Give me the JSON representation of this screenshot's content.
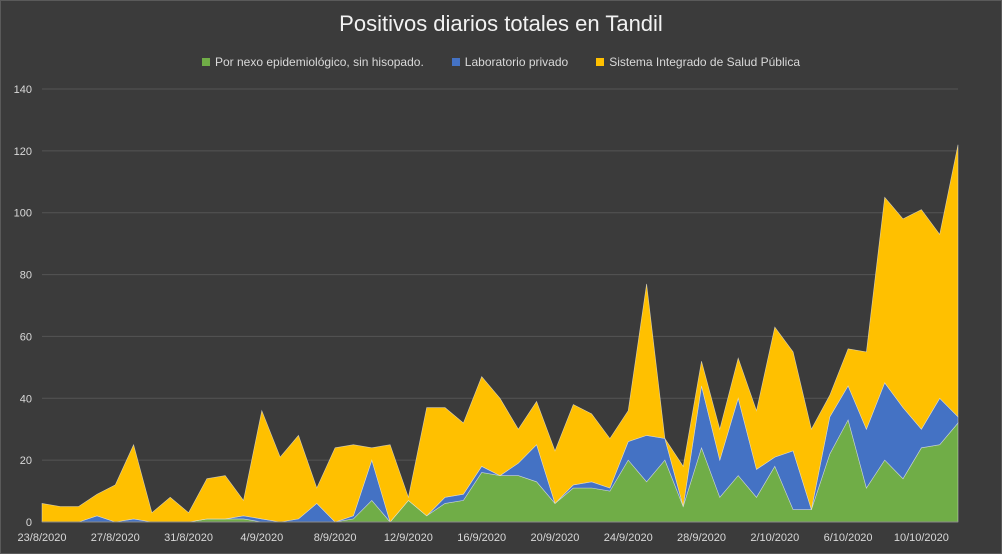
{
  "chart_data": {
    "type": "area",
    "title": "Positivos diarios totales en Tandil",
    "stacked": true,
    "ylim": [
      0,
      140
    ],
    "yticks": [
      0,
      20,
      40,
      60,
      80,
      100,
      120,
      140
    ],
    "grid": true,
    "legend_position": "top",
    "x": [
      "23/8/2020",
      "24/8/2020",
      "25/8/2020",
      "26/8/2020",
      "27/8/2020",
      "28/8/2020",
      "29/8/2020",
      "30/8/2020",
      "31/8/2020",
      "1/9/2020",
      "2/9/2020",
      "3/9/2020",
      "4/9/2020",
      "5/9/2020",
      "6/9/2020",
      "7/9/2020",
      "8/9/2020",
      "9/9/2020",
      "10/9/2020",
      "11/9/2020",
      "12/9/2020",
      "13/9/2020",
      "14/9/2020",
      "15/9/2020",
      "16/9/2020",
      "17/9/2020",
      "18/9/2020",
      "19/9/2020",
      "20/9/2020",
      "21/9/2020",
      "22/9/2020",
      "23/9/2020",
      "24/9/2020",
      "25/9/2020",
      "26/9/2020",
      "27/9/2020",
      "28/9/2020",
      "29/9/2020",
      "30/9/2020",
      "1/10/2020",
      "2/10/2020",
      "3/10/2020",
      "4/10/2020",
      "5/10/2020",
      "6/10/2020",
      "7/10/2020",
      "8/10/2020",
      "9/10/2020",
      "10/10/2020",
      "11/10/2020",
      "12/10/2020"
    ],
    "xtick_labels": [
      "23/8/2020",
      "27/8/2020",
      "31/8/2020",
      "4/9/2020",
      "8/9/2020",
      "12/9/2020",
      "16/9/2020",
      "20/9/2020",
      "24/9/2020",
      "28/9/2020",
      "2/10/2020",
      "6/10/2020",
      "10/10/2020"
    ],
    "series": [
      {
        "name": "Por nexo epidemiológico, sin hisopado.",
        "color": "#70ad47",
        "values": [
          0,
          0,
          0,
          0,
          0,
          0,
          0,
          0,
          0,
          1,
          1,
          1,
          0,
          0,
          0,
          0,
          0,
          1,
          7,
          0,
          7,
          2,
          6,
          7,
          16,
          15,
          15,
          13,
          6,
          11,
          11,
          10,
          20,
          13,
          20,
          5,
          24,
          8,
          15,
          8,
          18,
          4,
          4,
          22,
          33,
          11,
          20,
          14,
          24,
          25,
          32
        ]
      },
      {
        "name": "Laboratorio privado",
        "color": "#4472c4",
        "values": [
          0,
          0,
          0,
          2,
          0,
          1,
          0,
          0,
          0,
          0,
          0,
          1,
          1,
          0,
          1,
          6,
          0,
          1,
          13,
          0,
          0,
          0,
          2,
          2,
          2,
          0,
          4,
          12,
          0,
          1,
          2,
          1,
          6,
          15,
          7,
          0,
          20,
          12,
          25,
          9,
          3,
          19,
          0,
          12,
          11,
          19,
          25,
          23,
          6,
          15,
          2
        ]
      },
      {
        "name": "Sistema Integrado de Salud Pública",
        "color": "#ffc000",
        "values": [
          6,
          5,
          5,
          7,
          12,
          24,
          3,
          8,
          3,
          13,
          14,
          5,
          35,
          21,
          27,
          5,
          24,
          23,
          4,
          25,
          1,
          35,
          29,
          23,
          29,
          25,
          11,
          14,
          17,
          26,
          22,
          16,
          10,
          49,
          0,
          13,
          8,
          10,
          13,
          19,
          42,
          32,
          26,
          7,
          12,
          25,
          60,
          61,
          71,
          53,
          88
        ]
      }
    ]
  }
}
